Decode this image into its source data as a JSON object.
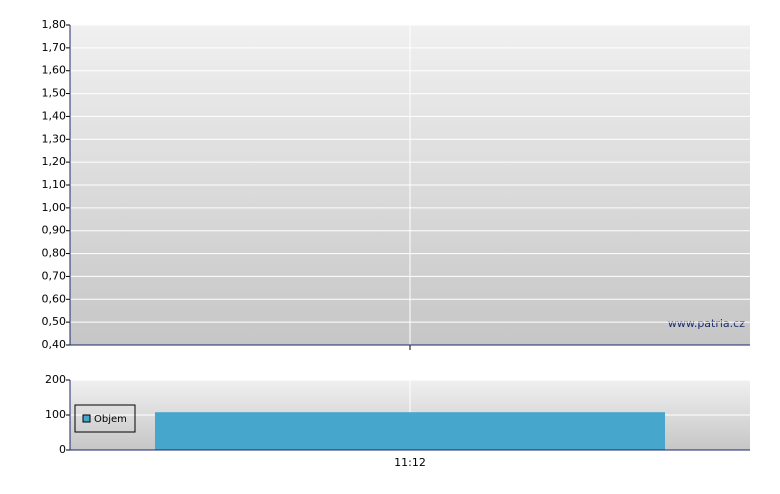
{
  "chart_data": [
    {
      "type": "line",
      "annotation": "www.patria.cz",
      "ylim": [
        0.4,
        1.8
      ],
      "yticks": [
        {
          "value": 0.4,
          "label": "0,40"
        },
        {
          "value": 0.5,
          "label": "0,50"
        },
        {
          "value": 0.6,
          "label": "0,60"
        },
        {
          "value": 0.7,
          "label": "0,70"
        },
        {
          "value": 0.8,
          "label": "0,80"
        },
        {
          "value": 0.9,
          "label": "0,90"
        },
        {
          "value": 1.0,
          "label": "1,00"
        },
        {
          "value": 1.1,
          "label": "1,10"
        },
        {
          "value": 1.2,
          "label": "1,20"
        },
        {
          "value": 1.3,
          "label": "1,30"
        },
        {
          "value": 1.4,
          "label": "1,40"
        },
        {
          "value": 1.5,
          "label": "1,50"
        },
        {
          "value": 1.6,
          "label": "1,60"
        },
        {
          "value": 1.7,
          "label": "1,70"
        },
        {
          "value": 1.8,
          "label": "1,80"
        }
      ],
      "grid": true
    },
    {
      "type": "bar",
      "categories": [
        "11:12"
      ],
      "series": [
        {
          "name": "Objem",
          "color": "#46a6cc",
          "values": [
            108
          ]
        }
      ],
      "ylim": [
        0,
        200
      ],
      "yticks": [
        0,
        100,
        200
      ],
      "grid": true
    }
  ]
}
